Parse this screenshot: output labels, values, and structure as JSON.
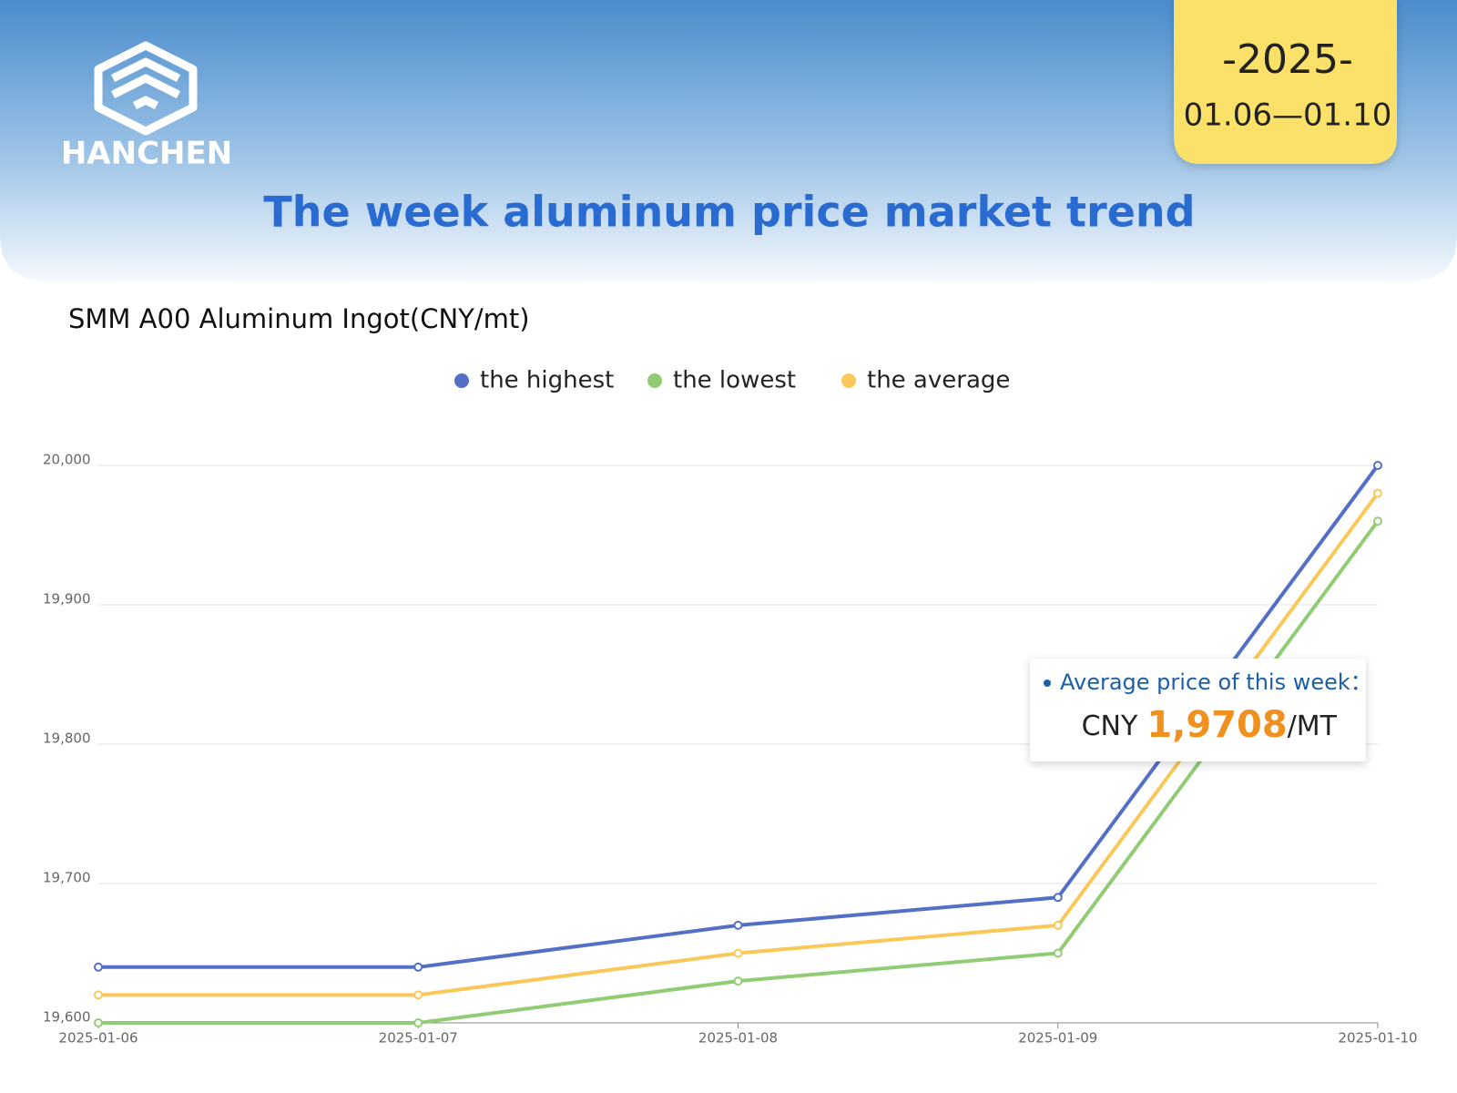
{
  "header": {
    "brand": "HANCHEN",
    "year": "-2025-",
    "date_range": "01.06—01.10",
    "title": "The week aluminum price market trend"
  },
  "chart_data": {
    "type": "line",
    "title": "SMM A00 Aluminum Ingot(CNY/mt)",
    "categories": [
      "2025-01-06",
      "2025-01-07",
      "2025-01-08",
      "2025-01-09",
      "2025-01-10"
    ],
    "series": [
      {
        "name": "the highest",
        "color": "#5470c6",
        "values": [
          19640,
          19640,
          19670,
          19690,
          20000
        ]
      },
      {
        "name": "the lowest",
        "color": "#91cc75",
        "values": [
          19600,
          19600,
          19630,
          19650,
          19960
        ]
      },
      {
        "name": "the average",
        "color": "#fac858",
        "values": [
          19620,
          19620,
          19650,
          19670,
          19980
        ]
      }
    ],
    "ylim": [
      19600,
      20000
    ],
    "yticks": [
      {
        "value": 19600,
        "label": "19,600"
      },
      {
        "value": 19700,
        "label": "19,700"
      },
      {
        "value": 19800,
        "label": "19,800"
      },
      {
        "value": 19900,
        "label": "19,900"
      },
      {
        "value": 20000,
        "label": "20,000"
      }
    ],
    "grid": true,
    "legend": "top",
    "annotation": {
      "title": "Average price of this week：",
      "currency": "CNY",
      "value": "1,9708",
      "unit": "/MT"
    }
  }
}
